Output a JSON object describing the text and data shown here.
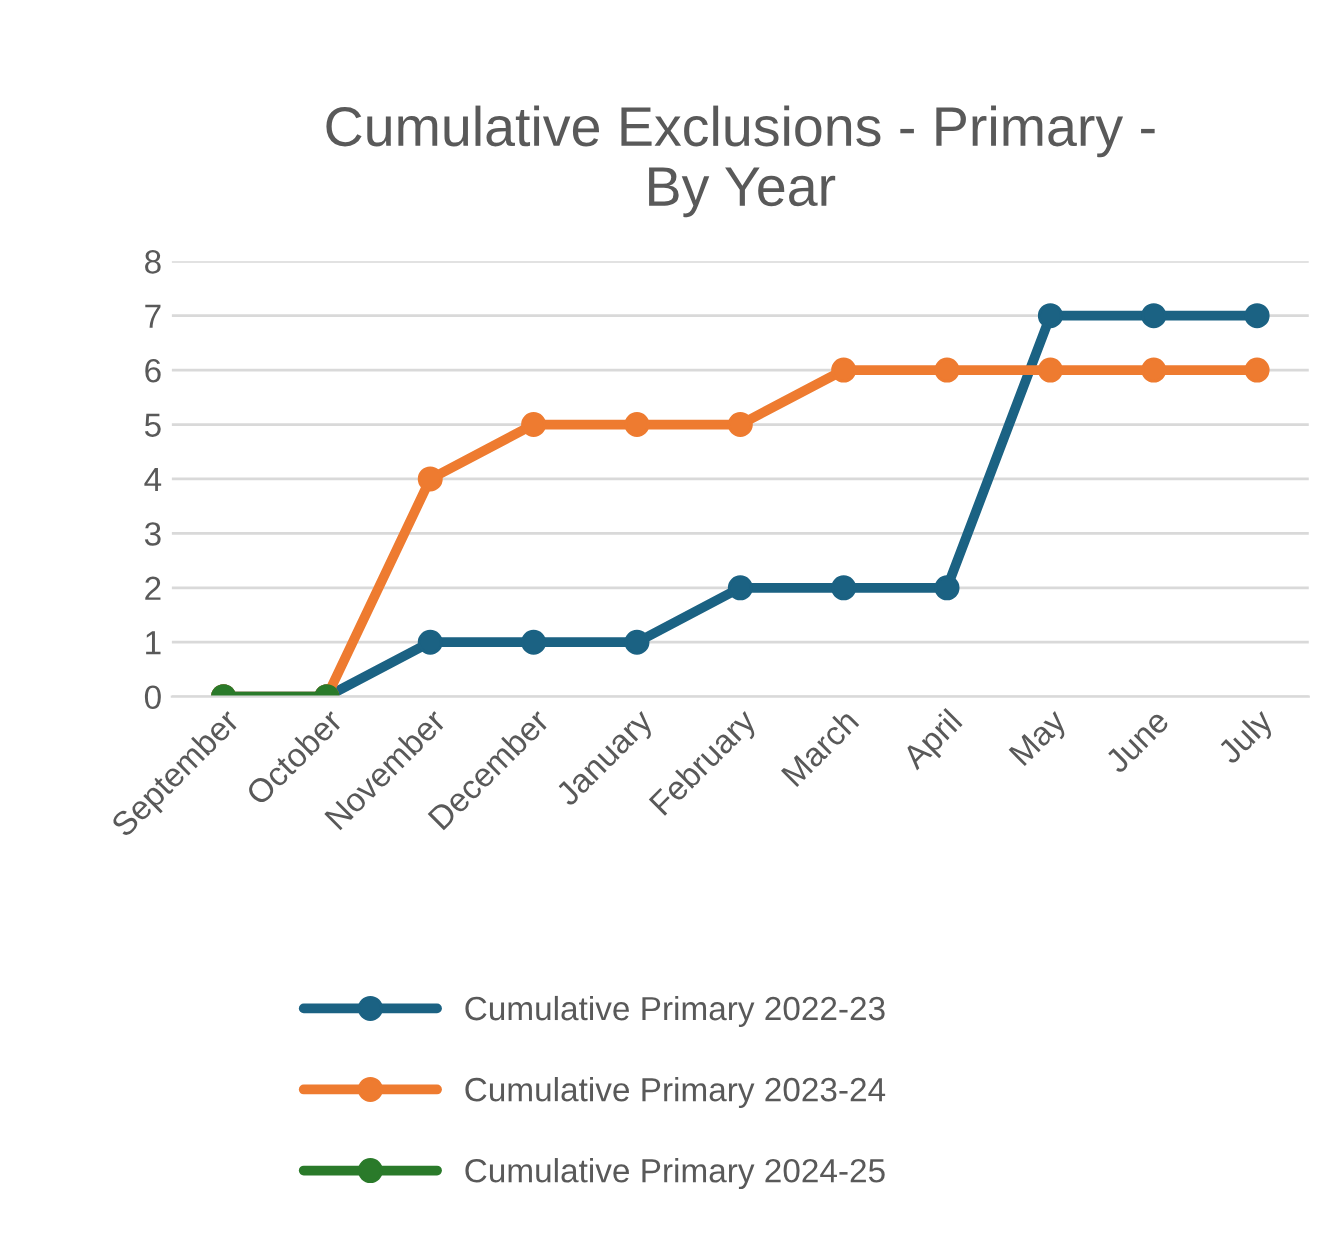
{
  "chart_data": {
    "type": "line",
    "title": "Cumulative Exclusions - Primary -\nBy Year",
    "categories": [
      "September",
      "October",
      "November",
      "December",
      "January",
      "February",
      "March",
      "April",
      "May",
      "June",
      "July"
    ],
    "series": [
      {
        "name": "Cumulative Primary 2022-23",
        "color": "#1b6283",
        "values": [
          0,
          0,
          1,
          1,
          1,
          2,
          2,
          2,
          7,
          7,
          7
        ]
      },
      {
        "name": "Cumulative Primary 2023-24",
        "color": "#ee7b30",
        "values": [
          0,
          0,
          4,
          5,
          5,
          5,
          6,
          6,
          6,
          6,
          6
        ]
      },
      {
        "name": "Cumulative Primary 2024-25",
        "color": "#2a7a2a",
        "values": [
          0,
          0,
          null,
          null,
          null,
          null,
          null,
          null,
          null,
          null,
          null
        ]
      }
    ],
    "ylim": [
      0,
      8
    ],
    "yticks": [
      0,
      1,
      2,
      3,
      4,
      5,
      6,
      7,
      8
    ],
    "grid": "y",
    "legend": "bottom",
    "marker": "circle",
    "line_style": "solid"
  }
}
